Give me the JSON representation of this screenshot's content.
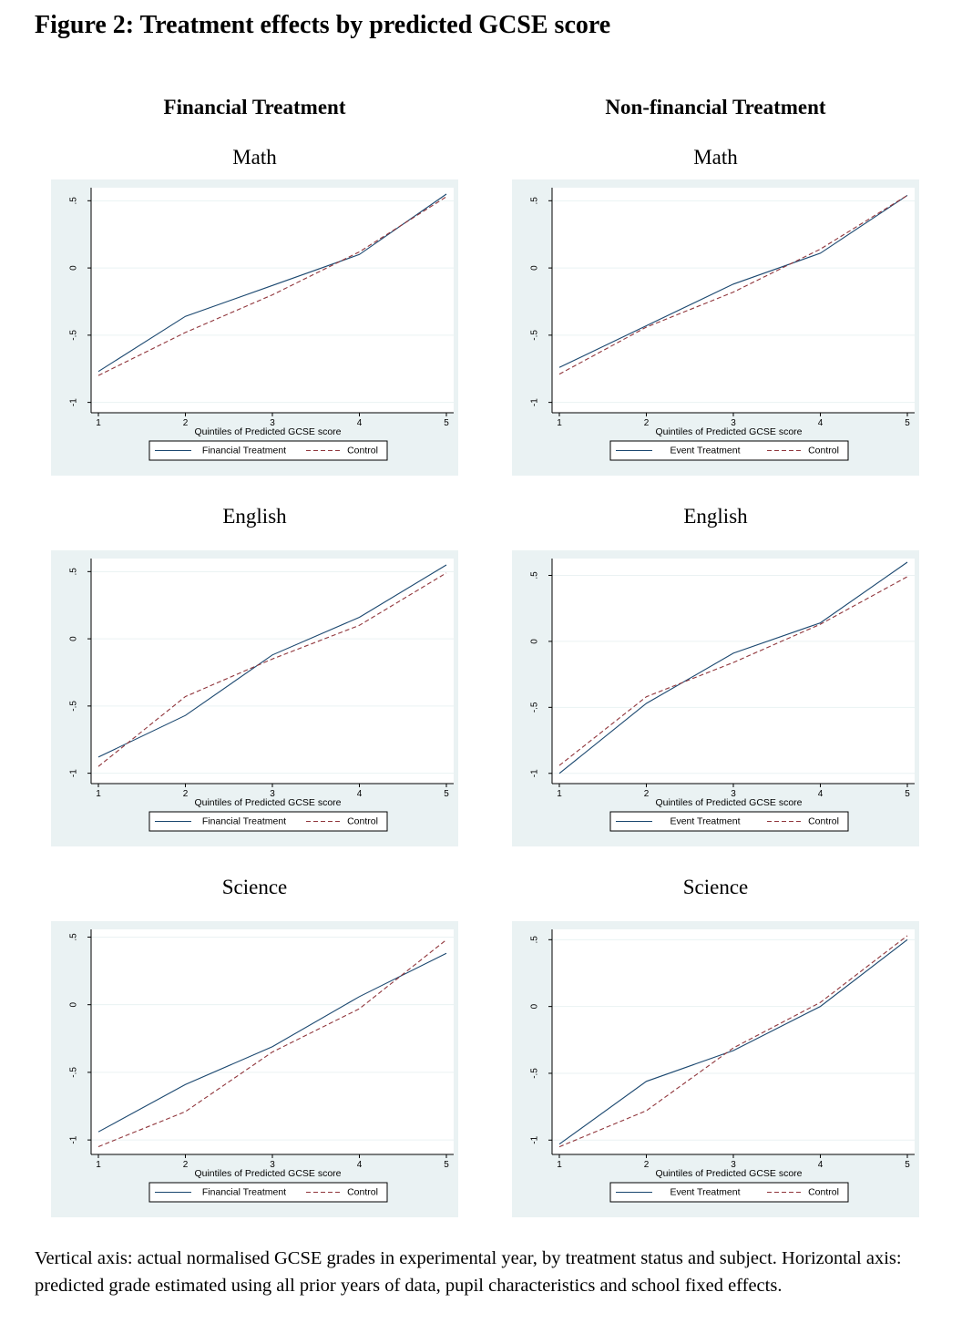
{
  "figure": {
    "title": "Figure 2: Treatment effects by predicted GCSE score",
    "columns": [
      "Financial Treatment",
      "Non-financial Treatment"
    ],
    "caption": "Vertical axis: actual normalised GCSE grades in experimental year, by treatment status and subject. Horizontal axis: predicted grade estimated using all prior years of data, pupil characteristics and school fixed effects."
  },
  "colors": {
    "panel_bg": "#eaf2f3",
    "plot_bg": "#ffffff",
    "grid": "#eaf2f3",
    "treatment_line": "#1a476f",
    "control_line": "#90353b"
  },
  "chart_data": [
    {
      "type": "line",
      "title": "Math",
      "column": "Financial Treatment",
      "xlabel": "Quintiles of Predicted GCSE score",
      "ylabel": "",
      "x": [
        1,
        2,
        3,
        4,
        5
      ],
      "xticks": [
        "1",
        "2",
        "3",
        "4",
        "5"
      ],
      "yticks": [
        -1,
        -0.5,
        0,
        0.5
      ],
      "ytick_labels": [
        "-1",
        "-.5",
        "0",
        ".5"
      ],
      "ylim": [
        -1.05,
        0.57
      ],
      "series": [
        {
          "name": "Financial Treatment",
          "style": "solid",
          "values": [
            -0.77,
            -0.36,
            -0.13,
            0.1,
            0.55
          ]
        },
        {
          "name": "Control",
          "style": "dashed",
          "values": [
            -0.8,
            -0.48,
            -0.2,
            0.12,
            0.53
          ]
        }
      ],
      "legend": "bottom",
      "grid": true
    },
    {
      "type": "line",
      "title": "Math",
      "column": "Non-financial Treatment",
      "xlabel": "Quintiles of Predicted GCSE score",
      "ylabel": "",
      "x": [
        1,
        2,
        3,
        4,
        5
      ],
      "xticks": [
        "1",
        "2",
        "3",
        "4",
        "5"
      ],
      "yticks": [
        -1,
        -0.5,
        0,
        0.5
      ],
      "ytick_labels": [
        "-1",
        "-.5",
        "0",
        ".5"
      ],
      "ylim": [
        -1.05,
        0.57
      ],
      "series": [
        {
          "name": "Event Treatment",
          "style": "solid",
          "values": [
            -0.74,
            -0.43,
            -0.12,
            0.11,
            0.54
          ]
        },
        {
          "name": "Control",
          "style": "dashed",
          "values": [
            -0.79,
            -0.44,
            -0.18,
            0.14,
            0.54
          ]
        }
      ],
      "legend": "bottom",
      "grid": true
    },
    {
      "type": "line",
      "title": "English",
      "column": "Financial Treatment",
      "xlabel": "Quintiles of Predicted GCSE score",
      "ylabel": "",
      "x": [
        1,
        2,
        3,
        4,
        5
      ],
      "xticks": [
        "1",
        "2",
        "3",
        "4",
        "5"
      ],
      "yticks": [
        -1,
        -0.5,
        0,
        0.5
      ],
      "ytick_labels": [
        "-1",
        "-.5",
        "0",
        ".5"
      ],
      "ylim": [
        -1.05,
        0.57
      ],
      "series": [
        {
          "name": "Financial Treatment",
          "style": "solid",
          "values": [
            -0.88,
            -0.57,
            -0.12,
            0.16,
            0.55
          ]
        },
        {
          "name": "Control",
          "style": "dashed",
          "values": [
            -0.95,
            -0.43,
            -0.15,
            0.1,
            0.49
          ]
        }
      ],
      "legend": "bottom",
      "grid": true
    },
    {
      "type": "line",
      "title": "English",
      "column": "Non-financial Treatment",
      "xlabel": "Quintiles of Predicted GCSE score",
      "ylabel": "",
      "x": [
        1,
        2,
        3,
        4,
        5
      ],
      "xticks": [
        "1",
        "2",
        "3",
        "4",
        "5"
      ],
      "yticks": [
        -1,
        -0.5,
        0,
        0.5
      ],
      "ytick_labels": [
        "-1",
        "-.5",
        "0",
        ".5"
      ],
      "ylim": [
        -1.05,
        0.6
      ],
      "series": [
        {
          "name": "Event Treatment",
          "style": "solid",
          "values": [
            -1.0,
            -0.47,
            -0.09,
            0.14,
            0.6
          ]
        },
        {
          "name": "Control",
          "style": "dashed",
          "values": [
            -0.94,
            -0.42,
            -0.16,
            0.13,
            0.49
          ]
        }
      ],
      "legend": "bottom",
      "grid": true
    },
    {
      "type": "line",
      "title": "Science",
      "column": "Financial Treatment",
      "xlabel": "Quintiles of Predicted GCSE score",
      "ylabel": "",
      "x": [
        1,
        2,
        3,
        4,
        5
      ],
      "xticks": [
        "1",
        "2",
        "3",
        "4",
        "5"
      ],
      "yticks": [
        -1,
        -0.5,
        0,
        0.5
      ],
      "ytick_labels": [
        "-1",
        "-.5",
        "0",
        ".5"
      ],
      "ylim": [
        -1.08,
        0.53
      ],
      "series": [
        {
          "name": "Financial Treatment",
          "style": "solid",
          "values": [
            -0.94,
            -0.59,
            -0.31,
            0.06,
            0.38
          ]
        },
        {
          "name": "Control",
          "style": "dashed",
          "values": [
            -1.05,
            -0.79,
            -0.35,
            -0.03,
            0.48
          ]
        }
      ],
      "legend": "bottom",
      "grid": true
    },
    {
      "type": "line",
      "title": "Science",
      "column": "Non-financial Treatment",
      "xlabel": "Quintiles of Predicted GCSE score",
      "ylabel": "",
      "x": [
        1,
        2,
        3,
        4,
        5
      ],
      "xticks": [
        "1",
        "2",
        "3",
        "4",
        "5"
      ],
      "yticks": [
        -1,
        -0.5,
        0,
        0.5
      ],
      "ytick_labels": [
        "-1",
        "-.5",
        "0",
        ".5"
      ],
      "ylim": [
        -1.08,
        0.55
      ],
      "series": [
        {
          "name": "Event Treatment",
          "style": "solid",
          "values": [
            -1.03,
            -0.56,
            -0.33,
            0.0,
            0.5
          ]
        },
        {
          "name": "Control",
          "style": "dashed",
          "values": [
            -1.05,
            -0.78,
            -0.31,
            0.03,
            0.53
          ]
        }
      ],
      "legend": "bottom",
      "grid": true
    }
  ]
}
